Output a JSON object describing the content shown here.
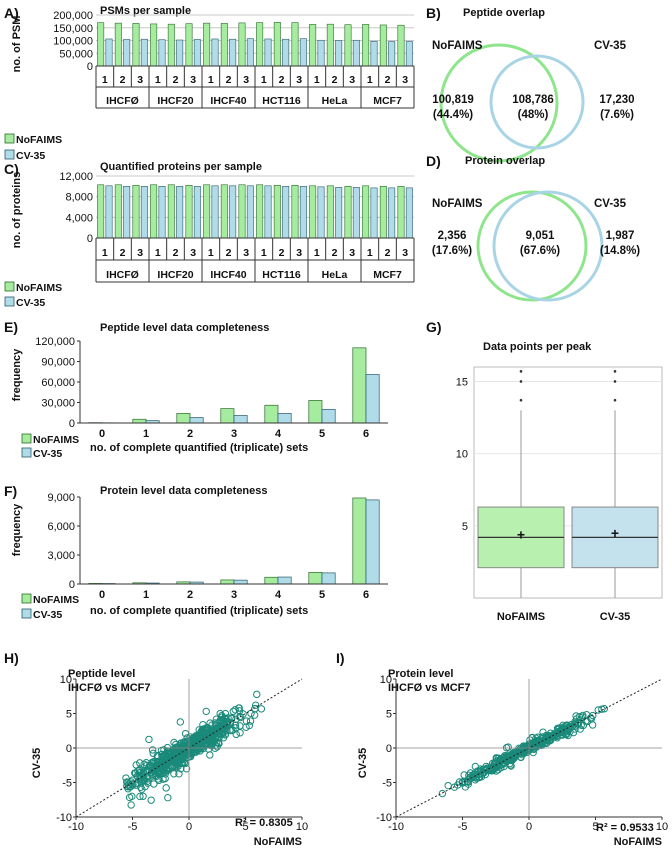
{
  "colors": {
    "nofaims": "#a6ec9e",
    "cv35": "#b0dbe8",
    "nofaims_edge": "#2a6a2a",
    "cv35_edge": "#2a5a6a",
    "venn_green": "#8ee58c",
    "venn_blue": "#a8d4e6",
    "teal": "#1a8a7a",
    "box_green": "#b8f0b0",
    "box_blue": "#c4e2ee"
  },
  "groups": [
    "IHCFØ",
    "IHCF20",
    "IHCF40",
    "HCT116",
    "HeLa",
    "MCF7"
  ],
  "reps": [
    "1",
    "2",
    "3"
  ],
  "legend": {
    "a": "NoFAIMS",
    "b": "CV-35"
  },
  "panels": {
    "A": {
      "letter": "A)",
      "title": "PSMs per sample",
      "ylabel": "no. of PSM",
      "yticks": [
        "0",
        "50,000",
        "100,000",
        "150,000",
        "200,000"
      ]
    },
    "B": {
      "letter": "B)",
      "title": "Peptide overlap",
      "left_name": "NoFAIMS",
      "right_name": "CV-35",
      "left_count": "100,819",
      "left_pct": "(44.4%)",
      "mid_count": "108,786",
      "mid_pct": "(48%)",
      "right_count": "17,230",
      "right_pct": "(7.6%)"
    },
    "C": {
      "letter": "C)",
      "title": "Quantified proteins per sample",
      "ylabel": "no. of proteins",
      "yticks": [
        "0",
        "4,000",
        "8,000",
        "12,000"
      ]
    },
    "D": {
      "letter": "D)",
      "title": "Protein overlap",
      "left_name": "NoFAIMS",
      "right_name": "CV-35",
      "left_count": "2,356",
      "left_pct": "(17.6%)",
      "mid_count": "9,051",
      "mid_pct": "(67.6%)",
      "right_count": "1,987",
      "right_pct": "(14.8%)"
    },
    "E": {
      "letter": "E)",
      "title": "Peptide level data completeness",
      "ylabel": "frequency",
      "xlabel": "no. of complete quantified (triplicate) sets",
      "yticks": [
        "0",
        "30,000",
        "60,000",
        "90,000",
        "120,000"
      ],
      "categories": [
        "0",
        "1",
        "2",
        "3",
        "4",
        "5",
        "6"
      ]
    },
    "F": {
      "letter": "F)",
      "title": "Protein level data completeness",
      "ylabel": "frequency",
      "xlabel": "no. of complete quantified (triplicate) sets",
      "yticks": [
        "0",
        "3,000",
        "6,000",
        "9,000"
      ],
      "categories": [
        "0",
        "1",
        "2",
        "3",
        "4",
        "5",
        "6"
      ]
    },
    "G": {
      "letter": "G)",
      "title": "Data points per peak",
      "yticks": [
        "5",
        "10",
        "15"
      ],
      "categories": [
        "NoFAIMS",
        "CV-35"
      ]
    },
    "H": {
      "letter": "H)",
      "title1": "Peptide level",
      "title2": "IHCFØ vs MCF7",
      "xlabel": "NoFAIMS",
      "ylabel": "CV-35",
      "r2": "R² = 0.8305",
      "ticks": [
        "-10",
        "-5",
        "0",
        "5",
        "10"
      ]
    },
    "I": {
      "letter": "I)",
      "title1": "Protein level",
      "title2": "IHCFØ vs MCF7",
      "xlabel": "NoFAIMS",
      "ylabel": "CV-35",
      "r2": "R² = 0.9533",
      "ticks": [
        "-10",
        "-5",
        "0",
        "5",
        "10"
      ]
    }
  },
  "chart_data": [
    {
      "id": "A",
      "type": "bar",
      "title": "PSMs per sample",
      "ylabel": "no. of PSM",
      "ylim": [
        0,
        200000
      ],
      "categories": [
        "IHCFØ-1",
        "IHCFØ-2",
        "IHCFØ-3",
        "IHCF20-1",
        "IHCF20-2",
        "IHCF20-3",
        "IHCF40-1",
        "IHCF40-2",
        "IHCF40-3",
        "HCT116-1",
        "HCT116-2",
        "HCT116-3",
        "HeLa-1",
        "HeLa-2",
        "HeLa-3",
        "MCF7-1",
        "MCF7-2",
        "MCF7-3"
      ],
      "series": [
        {
          "name": "NoFAIMS",
          "values": [
            170000,
            168000,
            167000,
            165000,
            164000,
            166000,
            168000,
            167000,
            169000,
            170000,
            171000,
            170000,
            163000,
            164000,
            162000,
            163000,
            161000,
            160000
          ]
        },
        {
          "name": "CV-35",
          "values": [
            106000,
            104000,
            105000,
            103000,
            102000,
            104000,
            106000,
            105000,
            107000,
            106000,
            105000,
            107000,
            101000,
            100000,
            101000,
            97000,
            96000,
            96000
          ]
        }
      ]
    },
    {
      "id": "C",
      "type": "bar",
      "title": "Quantified proteins per sample",
      "ylabel": "no. of proteins",
      "ylim": [
        0,
        12000
      ],
      "categories": [
        "IHCFØ-1",
        "IHCFØ-2",
        "IHCFØ-3",
        "IHCF20-1",
        "IHCF20-2",
        "IHCF20-3",
        "IHCF40-1",
        "IHCF40-2",
        "IHCF40-3",
        "HCT116-1",
        "HCT116-2",
        "HCT116-3",
        "HeLa-1",
        "HeLa-2",
        "HeLa-3",
        "MCF7-1",
        "MCF7-2",
        "MCF7-3"
      ],
      "series": [
        {
          "name": "NoFAIMS",
          "values": [
            10300,
            10300,
            10200,
            10300,
            10300,
            10200,
            10300,
            10300,
            10300,
            10300,
            10200,
            10200,
            10100,
            10100,
            10000,
            10100,
            10000,
            10000
          ]
        },
        {
          "name": "CV-35",
          "values": [
            10100,
            10000,
            10000,
            10000,
            10000,
            10000,
            10100,
            10100,
            10100,
            10100,
            10000,
            10000,
            9900,
            9800,
            9800,
            9700,
            9700,
            9700
          ]
        }
      ]
    },
    {
      "id": "E",
      "type": "bar",
      "title": "Peptide level data completeness",
      "xlabel": "no. of complete quantified (triplicate) sets",
      "ylabel": "frequency",
      "ylim": [
        0,
        120000
      ],
      "categories": [
        "0",
        "1",
        "2",
        "3",
        "4",
        "5",
        "6"
      ],
      "series": [
        {
          "name": "NoFAIMS",
          "values": [
            500,
            5500,
            14000,
            21000,
            26000,
            33000,
            110000
          ]
        },
        {
          "name": "CV-35",
          "values": [
            300,
            3500,
            8000,
            11000,
            14000,
            20000,
            71000
          ]
        }
      ]
    },
    {
      "id": "F",
      "type": "bar",
      "title": "Protein level data completeness",
      "xlabel": "no. of complete quantified (triplicate) sets",
      "ylabel": "frequency",
      "ylim": [
        0,
        9000
      ],
      "categories": [
        "0",
        "1",
        "2",
        "3",
        "4",
        "5",
        "6"
      ],
      "series": [
        {
          "name": "NoFAIMS",
          "values": [
            60,
            120,
            220,
            420,
            700,
            1200,
            8900
          ]
        },
        {
          "name": "CV-35",
          "values": [
            50,
            100,
            200,
            400,
            720,
            1150,
            8700
          ]
        }
      ]
    },
    {
      "id": "G",
      "type": "box",
      "title": "Data points per peak",
      "ylim": [
        0,
        16
      ],
      "categories": [
        "NoFAIMS",
        "CV-35"
      ],
      "boxes": [
        {
          "name": "NoFAIMS",
          "whisker_low": 0,
          "q1": 2.1,
          "median": 4.2,
          "mean": 4.4,
          "q3": 6.3,
          "whisker_high": 13,
          "outliers": [
            13.7,
            15,
            15.7
          ]
        },
        {
          "name": "CV-35",
          "whisker_low": 0,
          "q1": 2.1,
          "median": 4.2,
          "mean": 4.5,
          "q3": 6.3,
          "whisker_high": 13,
          "outliers": [
            13.7,
            15,
            15.7
          ]
        }
      ]
    },
    {
      "id": "H",
      "type": "scatter",
      "title": "Peptide level IHCFØ vs MCF7",
      "xlabel": "NoFAIMS",
      "ylabel": "CV-35",
      "xlim": [
        -10,
        10
      ],
      "ylim": [
        -10,
        10
      ],
      "r2": 0.8305,
      "trend": {
        "slope": 1,
        "intercept": 0
      },
      "n_points": 650,
      "spread": 1.2
    },
    {
      "id": "I",
      "type": "scatter",
      "title": "Protein level IHCFØ vs MCF7",
      "xlabel": "NoFAIMS",
      "ylabel": "CV-35",
      "xlim": [
        -10,
        10
      ],
      "ylim": [
        -10,
        10
      ],
      "r2": 0.9533,
      "trend": {
        "slope": 1,
        "intercept": 0
      },
      "n_points": 380,
      "spread": 0.5
    }
  ]
}
